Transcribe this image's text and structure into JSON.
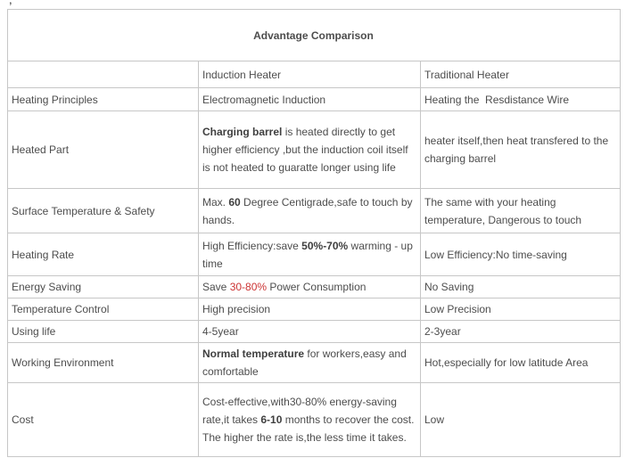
{
  "stray_mark": ",",
  "table": {
    "title": "Advantage Comparison",
    "columns": [
      "",
      "Induction Heater",
      "Traditional Heater"
    ],
    "accent_red": "#cc3333",
    "rows": [
      {
        "label": "Heating Principles",
        "induction": [
          {
            "text": "Electromagnetic Induction"
          }
        ],
        "traditional": [
          {
            "text": "Heating the  Resdistance Wire"
          }
        ]
      },
      {
        "label": "Heated Part",
        "induction": [
          {
            "text": "Charging barrel",
            "bold": true
          },
          {
            "text": " is heated directly to get higher efficiency ,but the induction coil itself is not heated to guaratte longer using life"
          }
        ],
        "traditional": [
          {
            "text": "heater itself,then heat transfered to the charging barrel"
          }
        ]
      },
      {
        "label": "Surface Temperature & Safety",
        "induction": [
          {
            "text": "Max. "
          },
          {
            "text": "60",
            "bold": true
          },
          {
            "text": " Degree Centigrade,safe to touch by hands."
          }
        ],
        "traditional": [
          {
            "text": "The same with your heating temperature, Dangerous to touch"
          }
        ]
      },
      {
        "label": "Heating Rate",
        "induction": [
          {
            "text": "High Efficiency:save "
          },
          {
            "text": "50%-70%",
            "bold": true
          },
          {
            "text": " warming - up time"
          }
        ],
        "traditional": [
          {
            "text": "Low Efficiency:No time-saving"
          }
        ]
      },
      {
        "label": "Energy Saving",
        "induction": [
          {
            "text": "Save "
          },
          {
            "text": "30-80%",
            "color": "#cc3333"
          },
          {
            "text": " Power Consumption"
          }
        ],
        "traditional": [
          {
            "text": "No Saving"
          }
        ]
      },
      {
        "label": "Temperature Control",
        "induction": [
          {
            "text": "High precision"
          }
        ],
        "traditional": [
          {
            "text": "Low Precision"
          }
        ]
      },
      {
        "label": "Using life",
        "induction": [
          {
            "text": "4-5year"
          }
        ],
        "traditional": [
          {
            "text": "2-3year"
          }
        ]
      },
      {
        "label": "Working Environment",
        "induction": [
          {
            "text": "Normal temperature",
            "bold": true
          },
          {
            "text": " for workers,easy and comfortable"
          }
        ],
        "traditional": [
          {
            "text": "Hot,especially for low latitude Area"
          }
        ]
      },
      {
        "label": "Cost",
        "induction": [
          {
            "text": "Cost-effective,with30-80% energy-saving rate,it takes "
          },
          {
            "text": "6-10",
            "bold": true
          },
          {
            "text": " months to recover the cost. The higher the rate is,the less time it takes."
          }
        ],
        "traditional": [
          {
            "text": "Low"
          }
        ]
      }
    ]
  }
}
